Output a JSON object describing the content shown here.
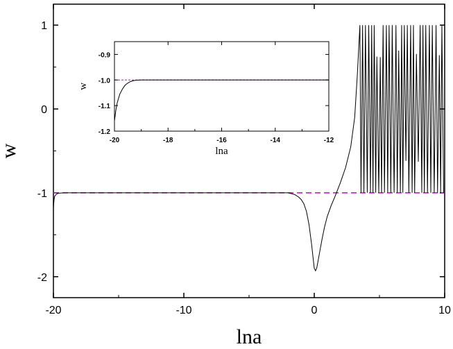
{
  "chart_data": [
    {
      "type": "line",
      "xlabel": "lna",
      "ylabel": "w",
      "xlim": [
        -20,
        10
      ],
      "ylim": [
        -2.25,
        1.25
      ],
      "xticks": [
        -20,
        -10,
        0,
        10
      ],
      "xtick_labels": [
        "-20",
        "-10",
        "0",
        "10"
      ],
      "yticks": [
        1,
        0,
        -1,
        -2
      ],
      "ytick_labels": [
        "1",
        "0",
        "-1",
        "-2"
      ],
      "grid": false,
      "legend": "none",
      "reference_line": {
        "y": -1.0,
        "style": "dashed",
        "color": "#cc00cc"
      },
      "series": [
        {
          "color": "#000000",
          "x": [
            -20,
            -19.95,
            -19.9,
            -19.8,
            -19.7,
            -19.6,
            -19.4,
            -19.0,
            -15,
            -10,
            -5,
            -3,
            -2,
            -1.5,
            -1.2,
            -1.0,
            -0.8,
            -0.6,
            -0.4,
            -0.2,
            0,
            0.1,
            0.2,
            0.4,
            0.6,
            0.8,
            1.0,
            1.3,
            1.6,
            2.0,
            2.4,
            2.8,
            3.1,
            3.3,
            3.5
          ],
          "y": [
            -1.18,
            -1.08,
            -1.04,
            -1.02,
            -1.01,
            -1.005,
            -1.002,
            -1.0,
            -1.0,
            -1.0,
            -1.0,
            -1.0,
            -1.0,
            -1.02,
            -1.05,
            -1.08,
            -1.13,
            -1.22,
            -1.38,
            -1.62,
            -1.9,
            -1.93,
            -1.89,
            -1.72,
            -1.55,
            -1.4,
            -1.28,
            -1.15,
            -1.04,
            -0.88,
            -0.7,
            -0.45,
            -0.1,
            0.4,
            1.0
          ]
        }
      ],
      "oscillation_region": {
        "x_start": 3.5,
        "x_end": 10,
        "y_min": -1.0,
        "y_max": 1.0
      }
    },
    {
      "type": "line",
      "xlabel": "lna",
      "ylabel": "w",
      "xlim": [
        -20,
        -12
      ],
      "ylim": [
        -1.2,
        -0.85
      ],
      "xticks": [
        -20,
        -18,
        -16,
        -14,
        -12
      ],
      "xtick_labels": [
        "-20",
        "-18",
        "-16",
        "-14",
        "-12"
      ],
      "yticks": [
        -0.9,
        -1.0,
        -1.1,
        -1.2
      ],
      "ytick_labels": [
        "-0.9",
        "-1.0",
        "-1.1",
        "-1.2"
      ],
      "grid": false,
      "legend": "none",
      "reference_line": {
        "y": -1.0,
        "style": "dashed",
        "color": "#cc00cc"
      },
      "series": [
        {
          "color": "#000000",
          "x": [
            -20,
            -19.95,
            -19.9,
            -19.8,
            -19.7,
            -19.6,
            -19.5,
            -19.4,
            -19.3,
            -19.2,
            -19.0,
            -18,
            -16,
            -14,
            -12
          ],
          "y": [
            -1.16,
            -1.12,
            -1.09,
            -1.055,
            -1.035,
            -1.02,
            -1.012,
            -1.006,
            -1.003,
            -1.001,
            -1.0,
            -1.0,
            -1.0,
            -1.0,
            -1.0
          ]
        }
      ]
    }
  ]
}
